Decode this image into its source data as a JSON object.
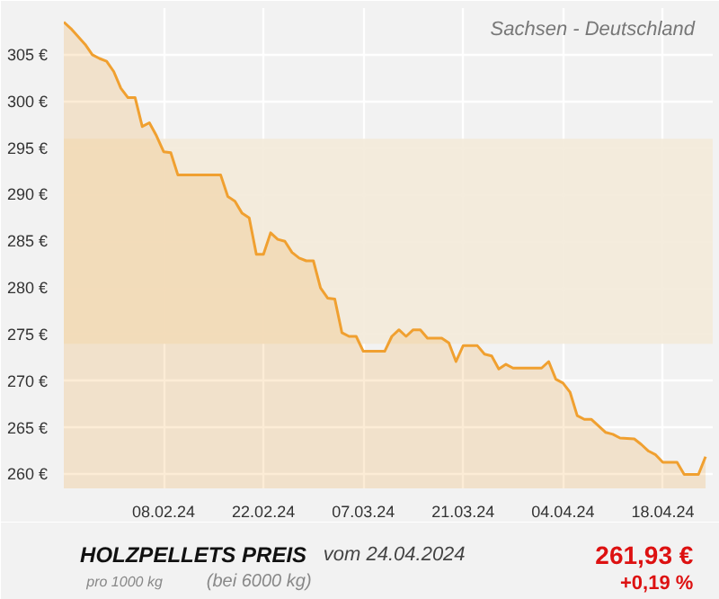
{
  "chart_data": {
    "type": "area",
    "title": "HOLZPELLETS PREIS",
    "subtitle": "Sachsen - Deutschland",
    "annotations": [
      "vom 24.04.2024",
      "pro 1000 kg",
      "(bei 6000 kg)",
      "261,93 €",
      "+0,19 %"
    ],
    "x": [
      "2024-01-25",
      "2024-01-26",
      "2024-01-28",
      "2024-01-29",
      "2024-01-30",
      "2024-01-31",
      "2024-02-01",
      "2024-02-02",
      "2024-02-03",
      "2024-02-04",
      "2024-02-05",
      "2024-02-06",
      "2024-02-07",
      "2024-02-08",
      "2024-02-09",
      "2024-02-10",
      "2024-02-11",
      "2024-02-16",
      "2024-02-17",
      "2024-02-18",
      "2024-02-19",
      "2024-02-20",
      "2024-02-21",
      "2024-02-22",
      "2024-02-23",
      "2024-02-24",
      "2024-02-25",
      "2024-02-26",
      "2024-02-27",
      "2024-02-28",
      "2024-02-29",
      "2024-03-01",
      "2024-03-02",
      "2024-03-03",
      "2024-03-04",
      "2024-03-05",
      "2024-03-06",
      "2024-03-07",
      "2024-03-10",
      "2024-03-11",
      "2024-03-12",
      "2024-03-13",
      "2024-03-14",
      "2024-03-15",
      "2024-03-16",
      "2024-03-18",
      "2024-03-19",
      "2024-03-20",
      "2024-03-21",
      "2024-03-23",
      "2024-03-24",
      "2024-03-25",
      "2024-03-26",
      "2024-03-27",
      "2024-03-28",
      "2024-04-01",
      "2024-04-02",
      "2024-04-03",
      "2024-04-04",
      "2024-04-05",
      "2024-04-06",
      "2024-04-07",
      "2024-04-08",
      "2024-04-10",
      "2024-04-11",
      "2024-04-12",
      "2024-04-14",
      "2024-04-15",
      "2024-04-16",
      "2024-04-17",
      "2024-04-18",
      "2024-04-20",
      "2024-04-21",
      "2024-04-23",
      "2024-04-24"
    ],
    "series": [
      {
        "color": "#f0a030",
        "values": [
          308.5,
          307.8,
          306.1,
          305,
          304.6,
          304.3,
          303.2,
          301.4,
          300.4,
          300.4,
          297.3,
          297.7,
          296.3,
          294.6,
          294.5,
          292.1,
          292.1,
          292.1,
          289.8,
          289.3,
          288,
          287.5,
          283.6,
          283.6,
          285.9,
          285.2,
          285,
          283.8,
          283.2,
          282.9,
          282.9,
          280,
          278.9,
          278.8,
          275.2,
          274.8,
          274.8,
          273.2,
          273.2,
          274.8,
          275.5,
          274.8,
          275.5,
          275.5,
          274.6,
          274.6,
          274.1,
          272.1,
          273.8,
          273.8,
          272.9,
          272.7,
          271.3,
          271.8,
          271.4,
          271.4,
          272.1,
          270.2,
          269.8,
          268.8,
          266.3,
          265.9,
          265.9,
          264.5,
          264.3,
          263.9,
          263.8,
          263.2,
          262.5,
          262.1,
          261.3,
          261.3,
          260,
          260,
          261.9
        ]
      }
    ],
    "xlim": [
      "2024-01-25",
      "2024-04-25"
    ],
    "ylim": [
      258.5,
      310
    ],
    "xticks": [
      {
        "value": "2024-02-08",
        "label": "08.02.24"
      },
      {
        "value": "2024-02-22",
        "label": "22.02.24"
      },
      {
        "value": "2024-03-07",
        "label": "07.03.24"
      },
      {
        "value": "2024-03-21",
        "label": "21.03.24"
      },
      {
        "value": "2024-04-04",
        "label": "04.04.24"
      },
      {
        "value": "2024-04-18",
        "label": "18.04.24"
      }
    ],
    "yticks": [
      {
        "value": 260,
        "label": "260 €"
      },
      {
        "value": 265,
        "label": "265 €"
      },
      {
        "value": 270,
        "label": "270 €"
      },
      {
        "value": 275,
        "label": "275 €"
      },
      {
        "value": 280,
        "label": "280 €"
      },
      {
        "value": 285,
        "label": "285 €"
      },
      {
        "value": 290,
        "label": "290 €"
      },
      {
        "value": 295,
        "label": "295 €"
      },
      {
        "value": 300,
        "label": "300 €"
      },
      {
        "value": 305,
        "label": "305 €"
      }
    ],
    "bands": [
      {
        "axis": "y",
        "from": 274,
        "to": 296,
        "color": "#f3ead9"
      }
    ],
    "grid": true
  }
}
